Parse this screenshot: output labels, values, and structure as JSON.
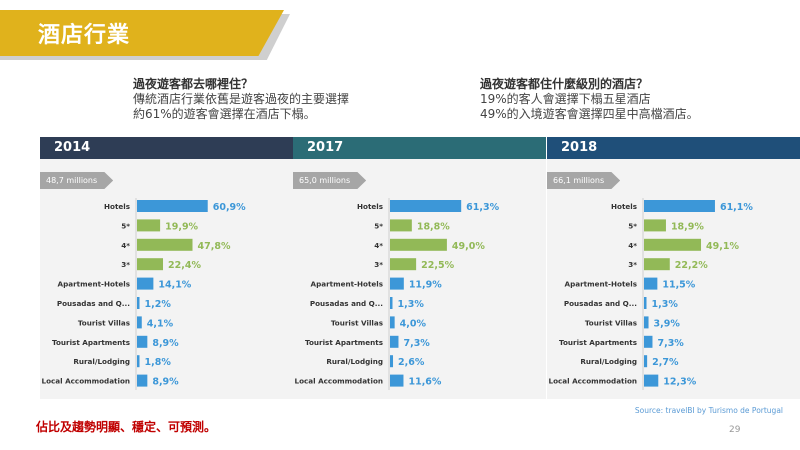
{
  "header": {
    "title": "酒店行業"
  },
  "intro_left": {
    "question": "過夜遊客都去哪裡住？",
    "line1": "傳統酒店行業依舊是遊客過夜的主要選擇",
    "line2": "約61%的遊客會選擇在酒店下榻。"
  },
  "intro_right": {
    "question": "過夜遊客都住什麼級別的酒店？",
    "line1": "19%的客人會選擇下榻五星酒店",
    "line2": "49%的入境遊客會選擇四星中高檔酒店。"
  },
  "colors": {
    "hotel_blue": "#3c97d8",
    "star_green": "#92b957",
    "label_blue": "#3c97d8",
    "label_green": "#92b957",
    "head_2014": "#2e3d55",
    "head_2017": "#2b6c76",
    "head_2018": "#1f4f79"
  },
  "chart_data": [
    {
      "type": "bar",
      "title": "2014",
      "total_label": "48,7 millions",
      "categories": [
        "Hotels",
        "5*",
        "4*",
        "3*",
        "Apartment-Hotels",
        "Pousadas and Q...",
        "Tourist Villas",
        "Tourist Apartments",
        "Rural/Lodging",
        "Local Accommodation"
      ],
      "values": [
        60.9,
        19.9,
        47.8,
        22.4,
        14.1,
        1.2,
        4.1,
        8.9,
        1.8,
        8.9
      ],
      "value_labels": [
        "60,9%",
        "19,9%",
        "47,8%",
        "22,4%",
        "14,1%",
        "1,2%",
        "4,1%",
        "8,9%",
        "1,8%",
        "8,9%"
      ],
      "bar_colors": [
        "blue",
        "green",
        "green",
        "green",
        "blue",
        "blue",
        "blue",
        "blue",
        "blue",
        "blue"
      ]
    },
    {
      "type": "bar",
      "title": "2017",
      "total_label": "65,0 millions",
      "categories": [
        "Hotels",
        "5*",
        "4*",
        "3*",
        "Apartment-Hotels",
        "Pousadas and Q...",
        "Tourist Villas",
        "Tourist Apartments",
        "Rural/Lodging",
        "Local Accommodation"
      ],
      "values": [
        61.3,
        18.8,
        49.0,
        22.5,
        11.9,
        1.3,
        4.0,
        7.3,
        2.6,
        11.6
      ],
      "value_labels": [
        "61,3%",
        "18,8%",
        "49,0%",
        "22,5%",
        "11,9%",
        "1,3%",
        "4,0%",
        "7,3%",
        "2,6%",
        "11,6%"
      ],
      "bar_colors": [
        "blue",
        "green",
        "green",
        "green",
        "blue",
        "blue",
        "blue",
        "blue",
        "blue",
        "blue"
      ]
    },
    {
      "type": "bar",
      "title": "2018",
      "total_label": "66,1 millions",
      "categories": [
        "Hotels",
        "5*",
        "4*",
        "3*",
        "Apartment-Hotels",
        "Pousadas and Q...",
        "Tourist Villas",
        "Tourist Apartments",
        "Rural/Lodging",
        "Local Accommodation"
      ],
      "values": [
        61.1,
        18.9,
        49.1,
        22.2,
        11.5,
        1.3,
        3.9,
        7.3,
        2.7,
        12.3
      ],
      "value_labels": [
        "61,1%",
        "18,9%",
        "49,1%",
        "22,2%",
        "11,5%",
        "1,3%",
        "3,9%",
        "7,3%",
        "2,7%",
        "12,3%"
      ],
      "bar_colors": [
        "blue",
        "green",
        "green",
        "green",
        "blue",
        "blue",
        "blue",
        "blue",
        "blue",
        "blue"
      ]
    }
  ],
  "footnote": "佔比及趨勢明顯、穩定、可預測。",
  "source": "Source: travelBI by Turismo de Portugal",
  "page_number": "29"
}
